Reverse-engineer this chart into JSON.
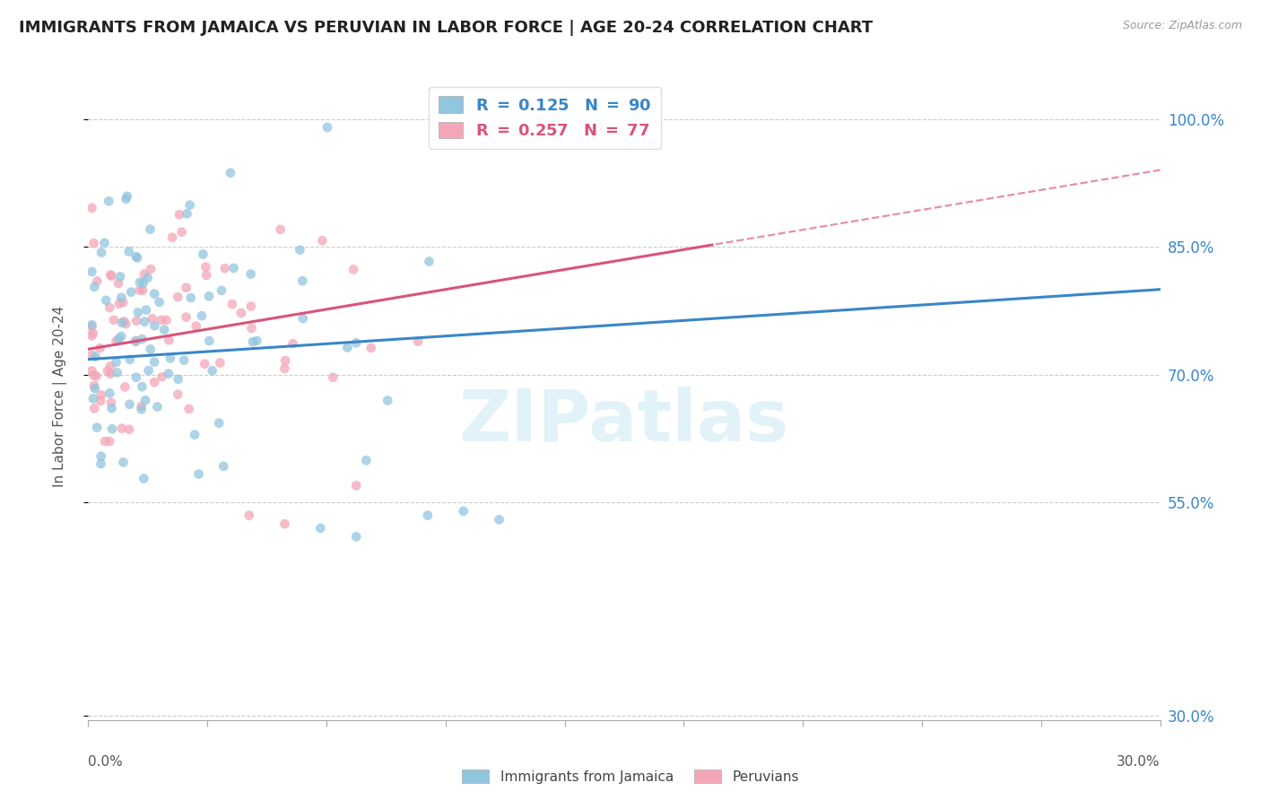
{
  "title": "IMMIGRANTS FROM JAMAICA VS PERUVIAN IN LABOR FORCE | AGE 20-24 CORRELATION CHART",
  "source": "Source: ZipAtlas.com",
  "ylabel": "In Labor Force | Age 20-24",
  "ytick_labels": [
    "100.0%",
    "85.0%",
    "70.0%",
    "55.0%",
    "30.0%"
  ],
  "ytick_values": [
    1.0,
    0.85,
    0.7,
    0.55,
    0.3
  ],
  "xmin": 0.0,
  "xmax": 0.3,
  "ymin": 0.295,
  "ymax": 1.055,
  "jamaica_color": "#92c5de",
  "peruvian_color": "#f4a6b8",
  "jamaica_line_color": "#3a86c8",
  "peruvian_line_color": "#d9547a",
  "jamaica_R": 0.125,
  "jamaica_N": 90,
  "peruvian_R": 0.257,
  "peruvian_N": 77,
  "watermark": "ZIPatlas"
}
